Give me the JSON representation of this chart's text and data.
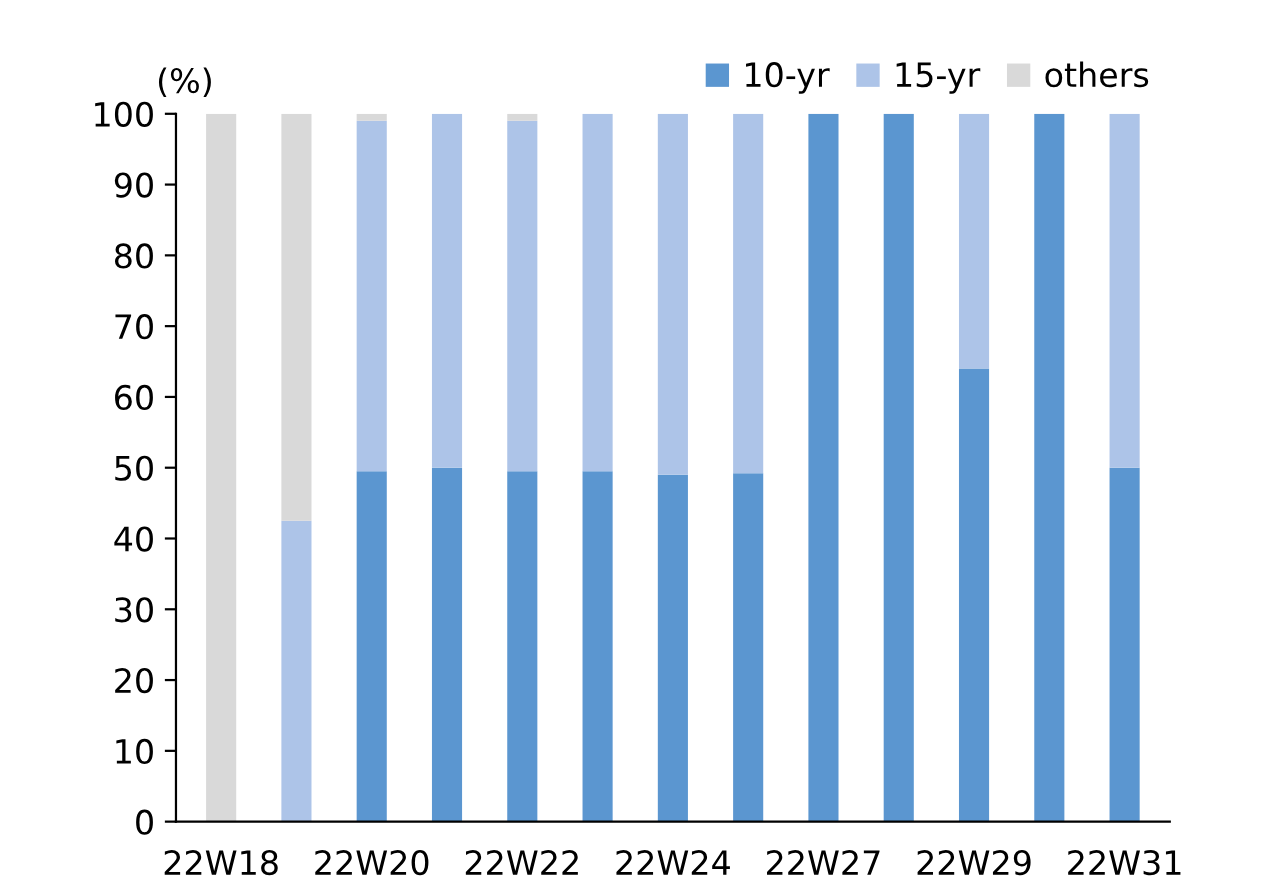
{
  "chart_data": {
    "type": "bar",
    "stacked": true,
    "ylabel": "(%)",
    "categories": [
      "22W18",
      null,
      "22W20",
      null,
      "22W22",
      null,
      "22W24",
      null,
      "22W27",
      null,
      "22W29",
      null,
      "22W31"
    ],
    "series": [
      {
        "name": "10-yr",
        "color": "#5b96d0",
        "values": [
          0,
          0,
          49.5,
          50,
          49.5,
          49.5,
          49,
          49.2,
          100,
          100,
          64,
          100,
          50
        ]
      },
      {
        "name": "15-yr",
        "color": "#adc4e8",
        "values": [
          0,
          42.5,
          49.5,
          50,
          49.5,
          50.5,
          51,
          50.8,
          0,
          0,
          36,
          0,
          50
        ]
      },
      {
        "name": "others",
        "color": "#d9d9d9",
        "values": [
          100,
          57.5,
          1,
          0,
          1,
          0,
          0,
          0,
          0,
          0,
          0,
          0,
          0
        ]
      }
    ],
    "ylim": [
      0,
      100
    ],
    "yticks": [
      0,
      10,
      20,
      30,
      40,
      50,
      60,
      70,
      80,
      90,
      100
    ],
    "grid": false,
    "legend": "top right"
  }
}
